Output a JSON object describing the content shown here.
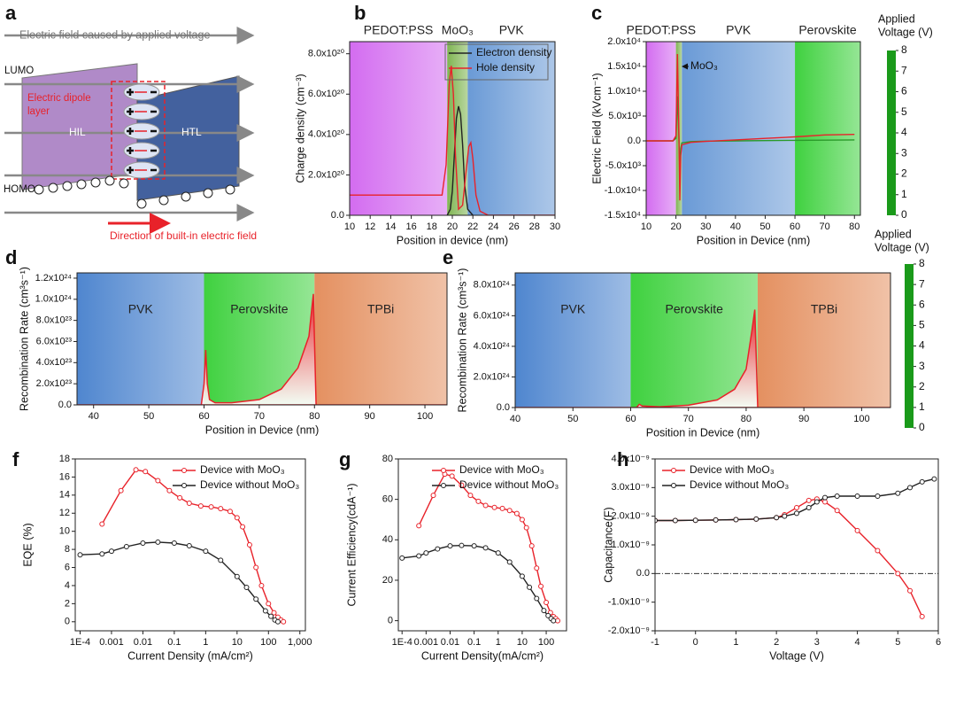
{
  "diagram": {
    "panel": "a",
    "field_label": "Electric field caused by applied voltage",
    "lumo": "LUMO",
    "dipole_label": [
      "Electric dipole",
      "layer"
    ],
    "hil": "HIL",
    "htl": "HTL",
    "homo": "HOMO",
    "built_in_label": "Direction of built-in electric field"
  },
  "chart_data": [
    {
      "type": "line",
      "panel": "b",
      "xlabel": "Position in device (nm)",
      "ylabel": "Charge density (cm⁻³)",
      "xlim": [
        10,
        30
      ],
      "xticks": [
        10,
        12,
        14,
        16,
        18,
        20,
        22,
        24,
        26,
        28,
        30
      ],
      "ylim": [
        0,
        8.6e+20
      ],
      "yticks": [
        {
          "value": 0,
          "label": "0.0"
        },
        {
          "value": 2e+20,
          "label": "2.0x10²⁰"
        },
        {
          "value": 4e+20,
          "label": "4.0x10²⁰"
        },
        {
          "value": 6e+20,
          "label": "6.0x10²⁰"
        },
        {
          "value": 8e+20,
          "label": "8.0x10²⁰"
        }
      ],
      "regions": [
        {
          "label": "PEDOT:PSS",
          "from": 10,
          "to": 19.5,
          "color": "#d36cf0"
        },
        {
          "label": "MoO₃",
          "from": 19.5,
          "to": 21.5,
          "color": "#7fb552"
        },
        {
          "label": "PVK",
          "from": 21.5,
          "to": 30,
          "color": "#6a9ad6"
        }
      ],
      "legend": "upper right",
      "series": [
        {
          "name": "Electron density",
          "color": "#222222",
          "x": [
            19.5,
            19.8,
            20.0,
            20.2,
            20.4,
            20.6,
            20.8,
            21.0,
            21.2,
            21.5,
            22
          ],
          "values": [
            0,
            3e+19,
            1.2e+20,
            3e+20,
            4.8e+20,
            5.4e+20,
            5e+20,
            3.5e+20,
            1.5e+20,
            3e+19,
            0
          ]
        },
        {
          "name": "Hole density",
          "color": "#e8222a",
          "x": [
            10,
            12,
            14,
            16,
            18,
            19,
            19.4,
            19.7,
            19.9,
            20.1,
            20.3,
            20.6,
            21.0,
            21.3,
            21.6,
            21.8,
            22.0,
            22.3,
            22.7,
            23.5,
            30
          ],
          "values": [
            1e+20,
            1e+20,
            1e+20,
            1e+20,
            1e+20,
            1e+20,
            2.5e+20,
            6.5e+20,
            7.4e+20,
            6e+20,
            3e+20,
            3e+19,
            5e+19,
            2e+20,
            3.4e+20,
            3.6e+20,
            2.8e+20,
            1e+20,
            2e+19,
            0,
            0
          ]
        }
      ]
    },
    {
      "type": "line",
      "panel": "c",
      "xlabel": "Position in Device (nm)",
      "ylabel": "Electric Field (kVcm⁻¹)",
      "xlim": [
        10,
        82
      ],
      "xticks": [
        10,
        20,
        30,
        40,
        50,
        60,
        70,
        80
      ],
      "ylim": [
        -15000,
        20000
      ],
      "yticks": [
        {
          "value": -15000,
          "label": "-1.5x10⁴"
        },
        {
          "value": -10000,
          "label": "-1.0x10⁴"
        },
        {
          "value": -5000,
          "label": "-5.0x10³"
        },
        {
          "value": 0,
          "label": "0.0"
        },
        {
          "value": 5000,
          "label": "5.0x10³"
        },
        {
          "value": 10000,
          "label": "1.0x10⁴"
        },
        {
          "value": 15000,
          "label": "1.5x10⁴"
        },
        {
          "value": 20000,
          "label": "2.0x10⁴"
        }
      ],
      "regions": [
        {
          "label": "PEDOT:PSS",
          "from": 10,
          "to": 20,
          "color": "#d36cf0"
        },
        {
          "from": 20,
          "to": 22,
          "color": "#7fb552"
        },
        {
          "label": "PVK",
          "from": 22,
          "to": 60,
          "color": "#6a9ad6"
        },
        {
          "label": "Perovskite",
          "from": 60,
          "to": 82,
          "color": "#3fd13f"
        }
      ],
      "annotation": "MoO₃",
      "colorbar": {
        "title": [
          "Applied",
          "Voltage (V)"
        ],
        "lim": [
          0,
          8
        ],
        "ticks": [
          0,
          1,
          2,
          3,
          4,
          5,
          6,
          7,
          8
        ],
        "colors": [
          "#1a9a1a",
          "#ffff88",
          "#f01c1c"
        ]
      },
      "series": [
        {
          "color": "#2a9a2a",
          "x": [
            10,
            19,
            20,
            20.5,
            21,
            21.3,
            21.6,
            22,
            25,
            30,
            40,
            50,
            60,
            70,
            80
          ],
          "values": [
            0,
            0,
            500,
            9000,
            500,
            -6000,
            -1500,
            -400,
            -150,
            -50,
            0,
            50,
            100,
            150,
            200
          ]
        },
        {
          "color": "#e8222a",
          "x": [
            10,
            19,
            20,
            20.5,
            21,
            21.3,
            21.6,
            22,
            25,
            30,
            40,
            50,
            60,
            70,
            80
          ],
          "values": [
            0,
            0,
            1000,
            17500,
            1000,
            -12000,
            -3000,
            -800,
            -300,
            -100,
            200,
            500,
            800,
            1200,
            1300
          ]
        }
      ]
    },
    {
      "type": "area",
      "panel": "d",
      "xlabel": "Position in Device (nm)",
      "ylabel": "Recombination Rate (cm³s⁻¹)",
      "xlim": [
        37,
        104
      ],
      "xticks": [
        40,
        50,
        60,
        70,
        80,
        90,
        100
      ],
      "ylim": [
        0,
        1.25e+24
      ],
      "yticks": [
        {
          "value": 0,
          "label": "0.0"
        },
        {
          "value": 2e+23,
          "label": "2.0x10²³"
        },
        {
          "value": 4e+23,
          "label": "4.0x10²³"
        },
        {
          "value": 6e+23,
          "label": "6.0x10²³"
        },
        {
          "value": 8e+23,
          "label": "8.0x10²³"
        },
        {
          "value": 1e+24,
          "label": "1.0x10²⁴"
        },
        {
          "value": 1.2e+24,
          "label": "1.2x10²⁴"
        }
      ],
      "regions": [
        {
          "label": "PVK",
          "from": 37,
          "to": 60,
          "color": "#4f86cf"
        },
        {
          "label": "Perovskite",
          "from": 60,
          "to": 80,
          "color": "#3fd13f"
        },
        {
          "label": "TPBi",
          "from": 80,
          "to": 104,
          "color": "#e49060"
        }
      ],
      "series": [
        {
          "color": "#e8222a",
          "x": [
            37,
            59.5,
            60,
            60.3,
            60.6,
            61,
            62,
            65,
            70,
            74,
            77,
            79,
            79.5,
            79.8,
            80,
            80.3,
            104
          ],
          "values": [
            0,
            0,
            2e+23,
            5.2e+23,
            2e+23,
            5e+22,
            2e+22,
            2e+22,
            5e+22,
            1.5e+23,
            3.5e+23,
            6.5e+23,
            9e+23,
            1.05e+24,
            6e+23,
            0,
            0
          ]
        }
      ]
    },
    {
      "type": "area",
      "panel": "e",
      "xlabel": "Position in Device (nm)",
      "ylabel": "Recombination Rate (cm³s⁻¹)",
      "xlim": [
        40,
        105
      ],
      "xticks": [
        40,
        50,
        60,
        70,
        80,
        90,
        100
      ],
      "ylim": [
        0,
        8.8e+24
      ],
      "yticks": [
        {
          "value": 0,
          "label": "0.0"
        },
        {
          "value": 2e+24,
          "label": "2.0x10²⁴"
        },
        {
          "value": 4e+24,
          "label": "4.0x10²⁴"
        },
        {
          "value": 6e+24,
          "label": "6.0x10²⁴"
        },
        {
          "value": 8e+24,
          "label": "8.0x10²⁴"
        }
      ],
      "regions": [
        {
          "label": "PVK",
          "from": 40,
          "to": 60,
          "color": "#4f86cf"
        },
        {
          "label": "Perovskite",
          "from": 60,
          "to": 82,
          "color": "#3fd13f"
        },
        {
          "label": "TPBi",
          "from": 82,
          "to": 105,
          "color": "#e49060"
        }
      ],
      "colorbar": {
        "title": [
          "Applied",
          "Voltage (V)"
        ],
        "lim": [
          0,
          8
        ],
        "ticks": [
          0,
          1,
          2,
          3,
          4,
          5,
          6,
          7,
          8
        ],
        "colors": [
          "#1a9a1a",
          "#ffff88",
          "#f01c1c"
        ]
      },
      "series": [
        {
          "color": "#e8222a",
          "x": [
            40,
            61,
            61.5,
            62,
            65,
            70,
            75,
            78,
            80,
            81,
            81.5,
            82,
            105
          ],
          "values": [
            0,
            0,
            2e+23,
            1e+23,
            5e+22,
            1.5e+23,
            5e+23,
            1.2e+24,
            2.5e+24,
            5e+24,
            6.4e+24,
            0,
            0
          ]
        }
      ]
    },
    {
      "type": "line",
      "panel": "f",
      "xlabel": "Current Density (mA/cm²)",
      "ylabel": "EQE (%)",
      "xlog": true,
      "markers": true,
      "xlim": [
        7e-05,
        1500
      ],
      "xticks": [
        {
          "value": 0.0001,
          "label": "1E-4"
        },
        0.001,
        0.01,
        0.1,
        1,
        10,
        100,
        {
          "value": 1000,
          "label": "1,000"
        }
      ],
      "ylim": [
        -1,
        18
      ],
      "yticks": [
        0,
        2,
        4,
        6,
        8,
        10,
        12,
        14,
        16,
        18
      ],
      "legend": "upper right",
      "series": [
        {
          "name": "Device with MoO₃",
          "color": "#e8222a",
          "x": [
            0.0005,
            0.002,
            0.006,
            0.012,
            0.03,
            0.07,
            0.15,
            0.3,
            0.7,
            1.5,
            3,
            6,
            10,
            15,
            25,
            40,
            60,
            100,
            150,
            200,
            250,
            300
          ],
          "values": [
            10.8,
            14.5,
            16.8,
            16.6,
            15.6,
            14.5,
            13.7,
            13.1,
            12.8,
            12.7,
            12.5,
            12.2,
            11.5,
            10.5,
            8.5,
            6,
            4,
            2,
            1,
            0.5,
            0.2,
            0
          ]
        },
        {
          "name": "Device without MoO₃",
          "color": "#222222",
          "x": [
            0.0001,
            0.0005,
            0.001,
            0.003,
            0.01,
            0.03,
            0.1,
            0.3,
            1,
            3,
            10,
            20,
            40,
            80,
            120,
            160,
            200
          ],
          "values": [
            7.4,
            7.5,
            7.8,
            8.3,
            8.7,
            8.8,
            8.7,
            8.4,
            7.8,
            6.8,
            5,
            3.8,
            2.5,
            1.2,
            0.6,
            0.2,
            0
          ]
        }
      ]
    },
    {
      "type": "line",
      "panel": "g",
      "xlabel": "Current Density(mA/cm²)",
      "ylabel": "Current Efficiency(cdA⁻¹)",
      "xlog": true,
      "markers": true,
      "xlim": [
        7e-05,
        700
      ],
      "xticks": [
        {
          "value": 0.0001,
          "label": "1E-4"
        },
        0.001,
        0.01,
        0.1,
        1,
        10,
        100
      ],
      "ylim": [
        -5,
        80
      ],
      "yticks": [
        0,
        20,
        40,
        60,
        80
      ],
      "legend": "upper right",
      "series": [
        {
          "name": "Device with MoO₃",
          "color": "#e8222a",
          "x": [
            0.0005,
            0.002,
            0.006,
            0.012,
            0.03,
            0.07,
            0.15,
            0.3,
            0.7,
            1.5,
            3,
            6,
            10,
            15,
            25,
            40,
            60,
            100,
            150,
            200,
            250,
            300
          ],
          "values": [
            47,
            62,
            72.5,
            71.5,
            67,
            62,
            59,
            57,
            56,
            55.5,
            54.5,
            53,
            50,
            46,
            37,
            26,
            17,
            9,
            4,
            2,
            1,
            0
          ]
        },
        {
          "name": "Device without MoO₃",
          "color": "#222222",
          "x": [
            0.0001,
            0.0005,
            0.001,
            0.003,
            0.01,
            0.03,
            0.1,
            0.3,
            1,
            3,
            10,
            20,
            40,
            80,
            120,
            160,
            200
          ],
          "values": [
            31,
            32,
            33.5,
            35.5,
            37,
            37.2,
            37,
            36,
            33.5,
            29,
            22,
            16.5,
            11,
            5,
            2.5,
            1,
            0
          ]
        }
      ]
    },
    {
      "type": "line",
      "panel": "h",
      "xlabel": "Voltage (V)",
      "ylabel": "Capacitance(F)",
      "markers": true,
      "hline": 0,
      "xlim": [
        -1,
        6
      ],
      "xticks": [
        -1,
        0,
        1,
        2,
        3,
        4,
        5,
        6
      ],
      "ylim": [
        -2e-09,
        4e-09
      ],
      "yticks": [
        {
          "value": -2e-09,
          "label": "-2.0x10⁻⁹"
        },
        {
          "value": -1e-09,
          "label": "-1.0x10⁻⁹"
        },
        {
          "value": 0,
          "label": "0.0"
        },
        {
          "value": 1e-09,
          "label": "1.0x10⁻⁹"
        },
        {
          "value": 2e-09,
          "label": "2.0x10⁻⁹"
        },
        {
          "value": 3e-09,
          "label": "3.0x10⁻⁹"
        },
        {
          "value": 4e-09,
          "label": "4.0x10⁻⁹"
        }
      ],
      "legend": "upper left",
      "series": [
        {
          "name": "Device with MoO₃",
          "color": "#e8222a",
          "x": [
            -1,
            -0.5,
            0,
            0.5,
            1,
            1.5,
            2,
            2.2,
            2.5,
            2.8,
            3,
            3.2,
            3.5,
            4,
            4.5,
            5,
            5.3,
            5.6
          ],
          "values": [
            1.85e-09,
            1.85e-09,
            1.86e-09,
            1.87e-09,
            1.88e-09,
            1.9e-09,
            1.95e-09,
            2.05e-09,
            2.3e-09,
            2.55e-09,
            2.6e-09,
            2.5e-09,
            2.2e-09,
            1.5e-09,
            8e-10,
            0,
            -6e-10,
            -1.5e-09
          ]
        },
        {
          "name": "Device without MoO₃",
          "color": "#222222",
          "x": [
            -1,
            -0.5,
            0,
            0.5,
            1,
            1.5,
            2,
            2.2,
            2.5,
            2.8,
            3,
            3.2,
            3.5,
            4,
            4.5,
            5,
            5.3,
            5.6,
            5.9
          ],
          "values": [
            1.85e-09,
            1.85e-09,
            1.86e-09,
            1.87e-09,
            1.88e-09,
            1.9e-09,
            1.95e-09,
            2e-09,
            2.1e-09,
            2.3e-09,
            2.5e-09,
            2.65e-09,
            2.7e-09,
            2.7e-09,
            2.7e-09,
            2.8e-09,
            3e-09,
            3.2e-09,
            3.3e-09
          ]
        }
      ]
    }
  ]
}
